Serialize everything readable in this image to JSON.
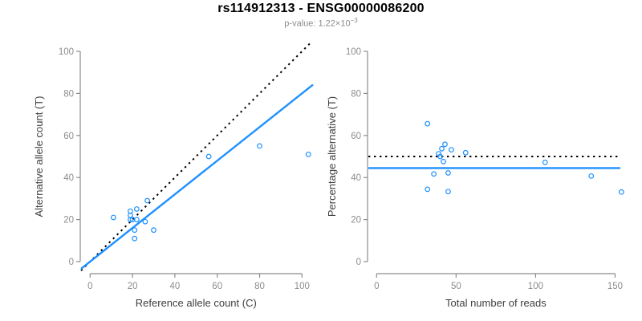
{
  "title": "rs114912313 - ENSG00000086200",
  "subtitle": {
    "text": "p-value: 1.22×10",
    "exponent": "−3"
  },
  "colors": {
    "accent_blue": "#1E90FF",
    "dotted_black": "#000000",
    "axis_gray": "#8c8c8c",
    "tick_label_gray": "#8c8c8c",
    "axis_title_dark": "#404040",
    "title_black": "#000000",
    "subtitle_gray": "#8c8c8c"
  },
  "chart_data": [
    {
      "type": "scatter",
      "name": "allele-counts-scatter",
      "xlabel": "Reference allele count (C)",
      "ylabel": "Alternative allele count (T)",
      "xlim": [
        0,
        105
      ],
      "ylim": [
        0,
        105
      ],
      "xticks": [
        0,
        20,
        40,
        60,
        80,
        100
      ],
      "yticks": [
        0,
        20,
        40,
        60,
        80,
        100
      ],
      "grid": false,
      "legend": null,
      "points": [
        [
          11,
          21
        ],
        [
          19,
          24
        ],
        [
          19,
          22
        ],
        [
          19,
          20
        ],
        [
          20,
          20
        ],
        [
          22,
          25
        ],
        [
          22,
          20
        ],
        [
          26,
          19
        ],
        [
          27,
          29
        ],
        [
          21,
          15
        ],
        [
          30,
          15
        ],
        [
          21,
          11
        ],
        [
          56,
          50
        ],
        [
          80,
          55
        ],
        [
          103,
          51
        ]
      ],
      "lines": [
        {
          "name": "identity-line",
          "style": "dotted",
          "color": "#000000",
          "slope": 1,
          "intercept": 0
        },
        {
          "name": "regression-line",
          "style": "solid",
          "color": "#1E90FF",
          "slope": 0.8,
          "intercept": 0
        }
      ]
    },
    {
      "type": "scatter",
      "name": "percentage-alternative-scatter",
      "xlabel": "Total number of reads",
      "ylabel": "Percentage alternative (T)",
      "xlim": [
        0,
        155
      ],
      "ylim": [
        0,
        105
      ],
      "xticks": [
        0,
        50,
        100,
        150
      ],
      "yticks": [
        0,
        20,
        40,
        60,
        80,
        100
      ],
      "grid": false,
      "legend": null,
      "points": [
        [
          32,
          65.6
        ],
        [
          43,
          55.8
        ],
        [
          41,
          53.7
        ],
        [
          39,
          51.3
        ],
        [
          40,
          50.0
        ],
        [
          47,
          53.2
        ],
        [
          42,
          47.6
        ],
        [
          45,
          42.2
        ],
        [
          56,
          51.8
        ],
        [
          36,
          41.7
        ],
        [
          45,
          33.3
        ],
        [
          32,
          34.4
        ],
        [
          106,
          47.2
        ],
        [
          135,
          40.7
        ],
        [
          154,
          33.1
        ]
      ],
      "lines": [
        {
          "name": "expected-50pct-line",
          "style": "dotted",
          "color": "#000000",
          "y": 50
        },
        {
          "name": "mean-percentage-line",
          "style": "solid",
          "color": "#1E90FF",
          "y": 44.5
        }
      ]
    }
  ]
}
